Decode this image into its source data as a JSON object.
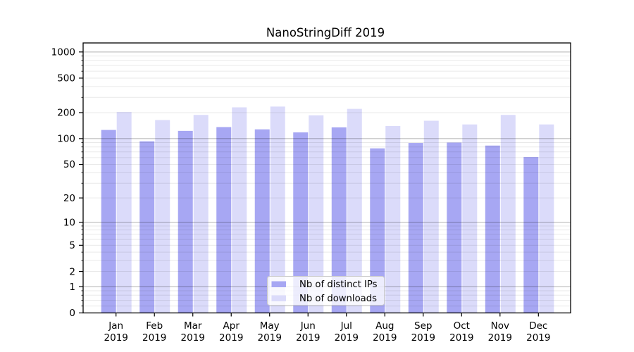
{
  "title": "NanoStringDiff 2019",
  "chart_data": {
    "type": "bar",
    "title": "NanoStringDiff 2019",
    "scale": "log10(1+y)",
    "categories": [
      "Jan 2019",
      "Feb 2019",
      "Mar 2019",
      "Apr 2019",
      "May 2019",
      "Jun 2019",
      "Jul 2019",
      "Aug 2019",
      "Sep 2019",
      "Oct 2019",
      "Nov 2019",
      "Dec 2019"
    ],
    "series": [
      {
        "name": "Nb of distinct IPs",
        "color": "#a7a7f3",
        "values": [
          126,
          93,
          123,
          136,
          128,
          118,
          135,
          77,
          89,
          90,
          83,
          61
        ]
      },
      {
        "name": "Nb of downloads",
        "color": "#dbdbfa",
        "values": [
          203,
          164,
          188,
          230,
          235,
          186,
          221,
          140,
          161,
          146,
          188,
          146
        ]
      }
    ],
    "xlabel": "",
    "ylabel": "",
    "ylim": [
      0,
      1270
    ],
    "y_ticks_labeled": [
      0,
      1,
      2,
      5,
      10,
      20,
      50,
      100,
      200,
      500,
      1000
    ],
    "y_ticks_major_grid": [
      1,
      10,
      100,
      1000
    ],
    "y_ticks_light_grid": [
      2,
      5,
      20,
      50,
      200,
      500
    ],
    "y_ticks_minor_grid": [
      0.2,
      0.4,
      0.6,
      0.8,
      3,
      4,
      6,
      7,
      8,
      9,
      30,
      40,
      60,
      70,
      80,
      90,
      300,
      400,
      600,
      700,
      800,
      900
    ],
    "grid": true,
    "legend_position": "bottom-center-inside"
  }
}
